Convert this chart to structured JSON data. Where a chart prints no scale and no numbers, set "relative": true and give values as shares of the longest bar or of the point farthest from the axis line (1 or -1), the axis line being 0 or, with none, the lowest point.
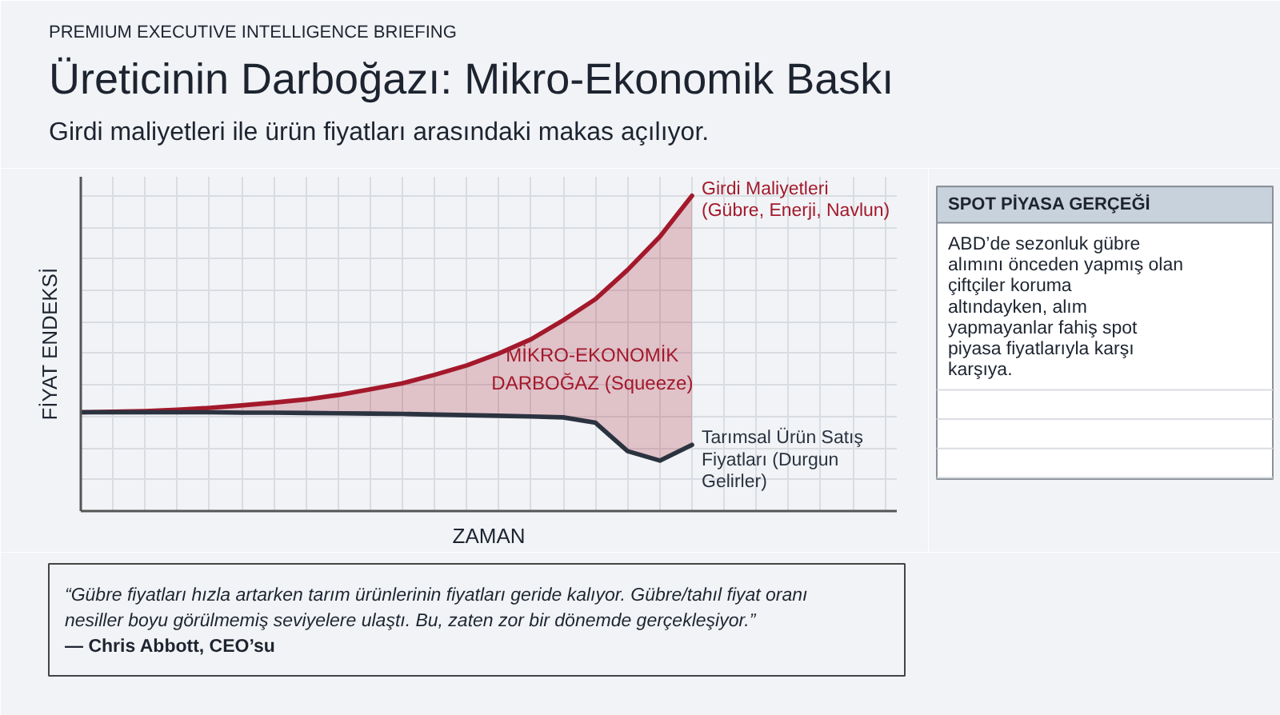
{
  "chart_data": [
    {
      "type": "line",
      "relative": true,
      "tick_labels": false,
      "grid": true,
      "title": "Üreticinin Darboğazı: Mikro-Ekonomik Baskı",
      "subtitle": "Girdi maliyetleri ile ürün fiyatları arasındaki makas açılıyor.",
      "xlabel": "ZAMAN",
      "ylabel": "FİYAT ENDEKSİ",
      "annotations": [
        "PREMIUM EXECUTIVE INTELLIGENCE BRIEFING",
        "MİKRO-EKONOMİK DARBOĞAZ (Squeeze)",
        "“Gübre fiyatları hızla artarken tarım ürünlerinin fiyatları geride kalıyor. Gübre/tahıl fiyat oranı nesiller boyu görülmemiş seviyelere ulaştı. Bu, zaten zor bir dönemde gerçekleşiyor.”",
        "— Chris Abbott, CEO’su"
      ],
      "categories": [
        null,
        null,
        null,
        null,
        null,
        null,
        null,
        null,
        null,
        null,
        null,
        null,
        null,
        null,
        null,
        null,
        null,
        null,
        null,
        null
      ],
      "series": [
        {
          "name": "Girdi Maliyetleri (Gübre, Enerji, Navlun)",
          "color": "#a3192b",
          "values": [
            0.313,
            0.315,
            0.317,
            0.321,
            0.327,
            0.335,
            0.344,
            0.354,
            0.368,
            0.386,
            0.405,
            0.432,
            0.462,
            0.5,
            0.545,
            0.605,
            0.672,
            0.765,
            0.87,
            1.0
          ],
          "lower": [
            0.313,
            0.313,
            0.313,
            0.313,
            0.313,
            0.312,
            0.312,
            0.311,
            0.31,
            0.309,
            0.308,
            0.306,
            0.304,
            0.302,
            0.3,
            0.297,
            0.28,
            0.19,
            0.16,
            0.21
          ],
          "upper": [
            0.313,
            0.315,
            0.317,
            0.321,
            0.327,
            0.335,
            0.344,
            0.354,
            0.368,
            0.386,
            0.405,
            0.432,
            0.462,
            0.5,
            0.545,
            0.605,
            0.672,
            0.765,
            0.87,
            1.0
          ]
        },
        {
          "name": "Tarımsal Ürün Satış Fiyatları (Durgun Gelirler)",
          "color": "#2b3340",
          "values": [
            0.313,
            0.313,
            0.313,
            0.313,
            0.313,
            0.312,
            0.312,
            0.311,
            0.31,
            0.309,
            0.308,
            0.306,
            0.304,
            0.302,
            0.3,
            0.297,
            0.28,
            0.19,
            0.16,
            0.21
          ]
        }
      ]
    },
    {
      "type": "other",
      "title": "SPOT PİYASA GERÇEĞİ",
      "annotations": [
        "ABD’de sezonluk gübre alımını önceden yapmış olan çiftçiler koruma altındayken, alım yapmayanlar fahiş spot piyasa fiyatlarıyla karşı karşıya."
      ]
    }
  ]
}
